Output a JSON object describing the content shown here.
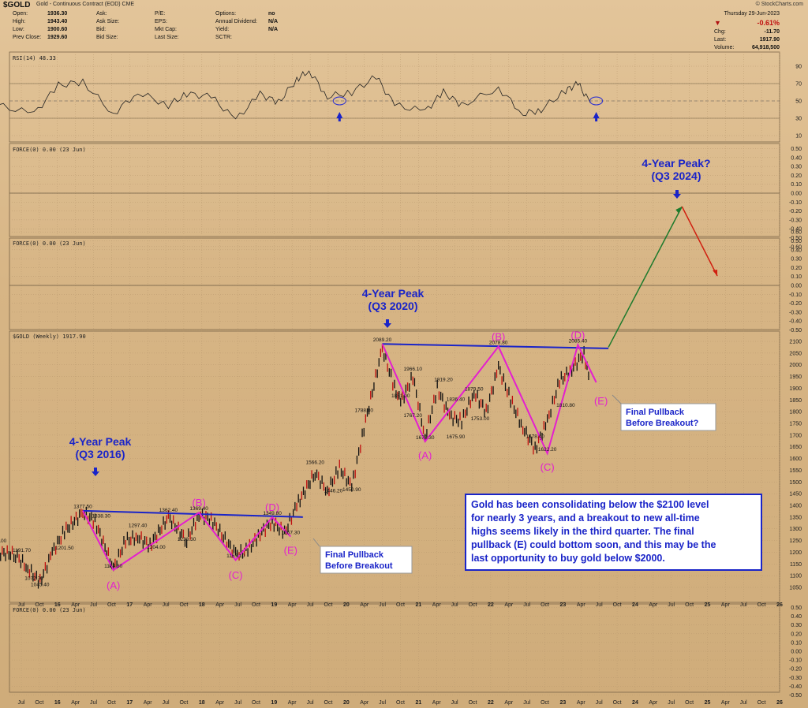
{
  "header": {
    "symbol": "$GOLD",
    "subtitle": "Gold - Continuous Contract (EOD) CME",
    "credit": "© StockCharts.com",
    "date": "Thursday 29-Jun-2023",
    "fields": [
      {
        "label": "Open:",
        "value": "1936.30"
      },
      {
        "label": "High:",
        "value": "1943.40"
      },
      {
        "label": "Low:",
        "value": "1900.60"
      },
      {
        "label": "Prev Close:",
        "value": "1929.60"
      }
    ],
    "fields2": [
      "Ask:",
      "Ask Size:",
      "Bid:",
      "Bid Size:"
    ],
    "fields3": [
      "P/E:",
      "EPS:",
      "Mkt Cap:",
      "Last Size:"
    ],
    "fields4": [
      {
        "label": "Options:",
        "value": "no"
      },
      {
        "label": "Annual Dividend:",
        "value": "N/A"
      },
      {
        "label": "Yield:",
        "value": "N/A"
      },
      {
        "label": "SCTR:",
        "value": ""
      }
    ],
    "quote": {
      "pct": "-0.61%",
      "chg_label": "Chg:",
      "chg": "-11.70",
      "last_label": "Last:",
      "last": "1917.90",
      "vol_label": "Volume:",
      "volume": "64,918,500"
    }
  },
  "panels": {
    "rsi_label": "RSI(14) 48.33",
    "force1_label": "FORCE(0) 0.00 (23 Jun)",
    "force2_label": "FORCE(0) 0.00 (23 Jun)",
    "price_label": "$GOLD (Weekly) 1917.90",
    "force3_label": "FORCE(0) 0.00 (23 Jun)"
  },
  "chart_data": {
    "type": "line",
    "frequency": "weekly",
    "x_axis": {
      "labels": [
        "Jul",
        "Oct",
        "16",
        "Apr",
        "Jul",
        "Oct",
        "17",
        "Apr",
        "Jul",
        "Oct",
        "18",
        "Apr",
        "Jul",
        "Oct",
        "19",
        "Apr",
        "Jul",
        "Oct",
        "20",
        "Apr",
        "Jul",
        "Oct",
        "21",
        "Apr",
        "Jul",
        "Oct",
        "22",
        "Apr",
        "Jul",
        "Oct",
        "23",
        "Apr",
        "Jul",
        "Oct",
        "24",
        "Apr",
        "Jul",
        "Oct",
        "25",
        "Apr",
        "Jul",
        "Oct",
        "26"
      ],
      "range": [
        "2015-07",
        "2026-01"
      ]
    },
    "rsi": {
      "ticks": [
        90,
        70,
        50,
        30,
        10
      ],
      "guides": [
        70,
        30
      ],
      "markers_at": [
        "2020-01",
        "2023-07"
      ],
      "series": {
        "x": [
          "2015-05",
          "2015-11",
          "2016-03",
          "2016-07",
          "2016-12",
          "2017-04",
          "2017-09",
          "2017-12",
          "2018-04",
          "2018-08",
          "2018-12",
          "2019-03",
          "2019-06",
          "2019-08",
          "2019-11",
          "2020-03",
          "2020-07",
          "2020-10",
          "2021-03",
          "2021-06",
          "2021-09",
          "2022-03",
          "2022-07",
          "2022-10",
          "2023-02",
          "2023-04",
          "2023-06"
        ],
        "values": [
          45,
          35,
          68,
          72,
          35,
          60,
          45,
          58,
          55,
          28,
          58,
          48,
          75,
          85,
          55,
          60,
          78,
          45,
          38,
          60,
          45,
          65,
          35,
          40,
          62,
          70,
          48
        ]
      }
    },
    "force_panel_1": {
      "ticks": [
        0.5,
        0.4,
        0.3,
        0.2,
        0.1,
        0,
        -0.1,
        -0.2,
        -0.3,
        -0.4,
        -0.5,
        -0.6
      ]
    },
    "force_panel_2": {
      "ticks": [
        0.6,
        0.5,
        0.4,
        0.3,
        0.2,
        0.1,
        0,
        -0.1,
        -0.2,
        -0.3,
        -0.4,
        -0.5
      ]
    },
    "force_panel_3": {
      "ticks": [
        0.5,
        0.4,
        0.3,
        0.2,
        0.1,
        0,
        -0.1,
        -0.2,
        -0.3,
        -0.4,
        -0.5
      ]
    },
    "price": {
      "ticks": [
        2100,
        2050,
        2000,
        1950,
        1900,
        1850,
        1800,
        1750,
        1700,
        1650,
        1600,
        1550,
        1500,
        1450,
        1400,
        1350,
        1300,
        1250,
        1200,
        1150,
        1100,
        1050
      ],
      "series": {
        "x": [
          "2015-05",
          "2015-08",
          "2015-10",
          "2015-12",
          "2016-02",
          "2016-04",
          "2016-07",
          "2016-09",
          "2016-12",
          "2017-02",
          "2017-04",
          "2017-06",
          "2017-09",
          "2017-12",
          "2018-02",
          "2018-04",
          "2018-08",
          "2018-10",
          "2018-12",
          "2019-02",
          "2019-04",
          "2019-06",
          "2019-09",
          "2019-11",
          "2020-01",
          "2020-03",
          "2020-05",
          "2020-08",
          "2020-10",
          "2020-11",
          "2021-01",
          "2021-03",
          "2021-05",
          "2021-07",
          "2021-09",
          "2021-11",
          "2022-01",
          "2022-03",
          "2022-05",
          "2022-07",
          "2022-09",
          "2022-11",
          "2023-01",
          "2023-03",
          "2023-05",
          "2023-06"
        ],
        "values": [
          1200,
          1190,
          1130,
          1072,
          1200,
          1290,
          1370,
          1330,
          1130,
          1250,
          1265,
          1230,
          1350,
          1250,
          1360,
          1340,
          1190,
          1210,
          1280,
          1330,
          1280,
          1400,
          1540,
          1460,
          1560,
          1480,
          1730,
          2070,
          1900,
          1840,
          1950,
          1690,
          1900,
          1780,
          1760,
          1880,
          1800,
          1990,
          1850,
          1730,
          1640,
          1760,
          1930,
          1980,
          2050,
          1918
        ]
      },
      "price_labels": [
        {
          "x": "2015-05",
          "y": 1232,
          "text": "1232.00"
        },
        {
          "x": "2015-09",
          "y": 1191.7,
          "text": "1191.70"
        },
        {
          "x": "2015-11",
          "y": 1072.3,
          "text": "1072.30"
        },
        {
          "x": "2015-12",
          "y": 1045.4,
          "text": "1045.40"
        },
        {
          "x": "2016-04",
          "y": 1201.5,
          "text": "1201.50"
        },
        {
          "x": "2016-07",
          "y": 1377.5,
          "text": "1377.50"
        },
        {
          "x": "2016-10",
          "y": 1338.3,
          "text": "1338.30"
        },
        {
          "x": "2016-12",
          "y": 1124.3,
          "text": "1124.30"
        },
        {
          "x": "2017-04",
          "y": 1297.4,
          "text": "1297.40"
        },
        {
          "x": "2017-07",
          "y": 1204,
          "text": "1204.00"
        },
        {
          "x": "2017-09",
          "y": 1362.4,
          "text": "1362.40"
        },
        {
          "x": "2017-12",
          "y": 1238.3,
          "text": "1238.30"
        },
        {
          "x": "2018-02",
          "y": 1369.4,
          "text": "1369.40"
        },
        {
          "x": "2018-08",
          "y": 1167.1,
          "text": "1167.10"
        },
        {
          "x": "2019-02",
          "y": 1349.8,
          "text": "1349.80"
        },
        {
          "x": "2019-05",
          "y": 1267.3,
          "text": "1267.30"
        },
        {
          "x": "2019-09",
          "y": 1566.2,
          "text": "1566.20"
        },
        {
          "x": "2019-12",
          "y": 1446.2,
          "text": "1446.20"
        },
        {
          "x": "2020-03",
          "y": 1450.9,
          "text": "1450.90"
        },
        {
          "x": "2020-05",
          "y": 1788.8,
          "text": "1788.80"
        },
        {
          "x": "2020-08",
          "y": 2089.2,
          "text": "2089.20"
        },
        {
          "x": "2020-11",
          "y": 1851,
          "text": "1851.00"
        },
        {
          "x": "2021-01",
          "y": 1966.1,
          "text": "1966.10"
        },
        {
          "x": "2021-01",
          "y": 1767.2,
          "text": "1767.20"
        },
        {
          "x": "2021-03",
          "y": 1673.3,
          "text": "1673.30"
        },
        {
          "x": "2021-06",
          "y": 1919.2,
          "text": "1919.20"
        },
        {
          "x": "2021-08",
          "y": 1836.4,
          "text": "1836.40"
        },
        {
          "x": "2021-08",
          "y": 1675.9,
          "text": "1675.90"
        },
        {
          "x": "2021-11",
          "y": 1879.5,
          "text": "1879.50"
        },
        {
          "x": "2021-12",
          "y": 1753,
          "text": "1753.00"
        },
        {
          "x": "2022-03",
          "y": 2078.8,
          "text": "2078.80"
        },
        {
          "x": "2022-09",
          "y": 1678.4,
          "text": "1678.40"
        },
        {
          "x": "2022-11",
          "y": 1622.2,
          "text": "1622.20"
        },
        {
          "x": "2023-02",
          "y": 1810.8,
          "text": "1810.80"
        },
        {
          "x": "2023-04",
          "y": 2085.4,
          "text": "2085.40"
        }
      ],
      "trend_lines": [
        {
          "from": [
            "2016-07",
            1377
          ],
          "to": [
            "2019-07",
            1350
          ],
          "color": "#1a24c8"
        },
        {
          "from": [
            "2020-08",
            2089
          ],
          "to": [
            "2023-09",
            2070
          ],
          "color": "#1a24c8"
        }
      ],
      "wave_1": {
        "points": [
          [
            "2016-07",
            1377
          ],
          [
            "2016-12",
            1124
          ],
          [
            "2018-02",
            1369
          ],
          [
            "2018-08",
            1167
          ],
          [
            "2019-02",
            1349
          ],
          [
            "2019-05",
            1267
          ]
        ],
        "labels": [
          "(A)",
          "(B)",
          "(C)",
          "(D)",
          "(E)"
        ]
      },
      "wave_2": {
        "points": [
          [
            "2020-08",
            2089
          ],
          [
            "2021-03",
            1673
          ],
          [
            "2022-03",
            2078
          ],
          [
            "2022-11",
            1622
          ],
          [
            "2023-04",
            2085
          ],
          [
            "2023-07",
            1925
          ]
        ],
        "labels": [
          "(A)",
          "(B)",
          "(C)",
          "(D)",
          "(E)"
        ]
      },
      "projection": {
        "green_from": "2023-09",
        "red_from": "2024-08",
        "red_to": "2025-01"
      }
    },
    "annotations": [
      {
        "text": "4-Year Peak",
        "text2": "(Q3 2016)"
      },
      {
        "text": "4-Year Peak",
        "text2": "(Q3 2020)"
      },
      {
        "text": "4-Year Peak?",
        "text2": "(Q3 2024)"
      },
      {
        "text": "Final Pullback",
        "text2": "Before Breakout"
      },
      {
        "text": "Final Pullback",
        "text2": "Before Breakout?"
      }
    ],
    "note": [
      "Gold has been consolidating below the $2100 level",
      "for nearly 3 years, and a breakout to new all-time",
      "highs seems likely in the third quarter. The final",
      "pullback (E) could bottom soon, and this may be the",
      "last opportunity to buy gold below $2000."
    ]
  }
}
